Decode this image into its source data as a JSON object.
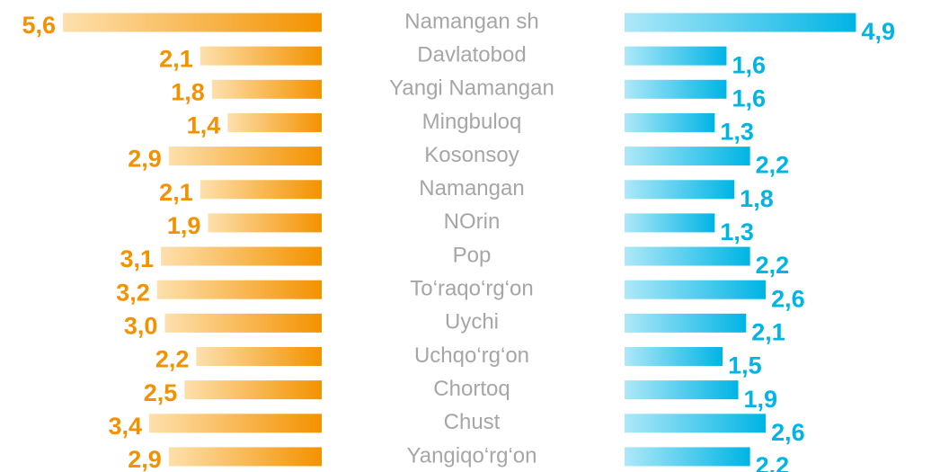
{
  "chart_data": {
    "type": "butterfly-bar",
    "categories": [
      "Namangan sh",
      "Davlatobod",
      "Yangi Namangan",
      "Mingbuloq",
      "Kosonsoy",
      "Namangan",
      "NOrin",
      "Pop",
      "To‘raqo‘rg‘on",
      "Uychi",
      "Uchqo‘rg‘on",
      "Chortoq",
      "Chust",
      "Yangiqo‘rg‘on"
    ],
    "xlim": [
      -1,
      5.6
    ],
    "series": [
      {
        "color": "#f39200",
        "side": "left",
        "values": [
          5.6,
          2.1,
          1.8,
          1.4,
          2.9,
          2.1,
          1.9,
          3.1,
          3.2,
          3.0,
          2.2,
          2.5,
          3.4,
          2.9
        ],
        "value_labels": [
          "5,6",
          "2,1",
          "1,8",
          "1,4",
          "2,9",
          "2,1",
          "1,9",
          "3,1",
          "3,2",
          "3,0",
          "2,2",
          "2,5",
          "3,4",
          "2,9"
        ]
      },
      {
        "color": "#00b4e4",
        "side": "right",
        "values": [
          4.9,
          1.6,
          1.6,
          1.3,
          2.2,
          1.8,
          1.3,
          2.2,
          2.6,
          2.1,
          1.5,
          1.9,
          2.6,
          2.2
        ],
        "value_labels": [
          "4,9",
          "1,6",
          "1,6",
          "1,3",
          "2,2",
          "1,8",
          "1,3",
          "2,2",
          "2,6",
          "2,1",
          "1,5",
          "1,9",
          "2,6",
          "2,2"
        ]
      }
    ]
  }
}
